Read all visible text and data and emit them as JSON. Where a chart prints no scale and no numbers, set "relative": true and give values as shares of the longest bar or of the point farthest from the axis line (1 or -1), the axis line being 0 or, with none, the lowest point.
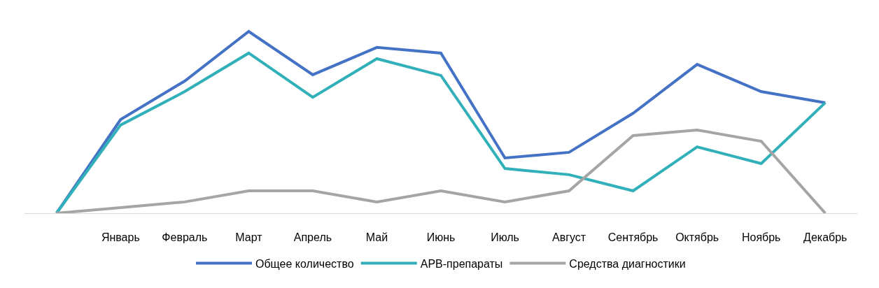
{
  "chart_data": {
    "type": "line",
    "relative": true,
    "grid": false,
    "legend": "bottom",
    "marker": "none",
    "line_style": "solid",
    "categories": [
      null,
      "Январь",
      "Февраль",
      "Март",
      "Апрель",
      "Май",
      "Июнь",
      "Июль",
      "Август",
      "Сентябрь",
      "Октябрь",
      "Ноябрь",
      "Декабрь"
    ],
    "series": [
      {
        "name": "Общее количество",
        "color": "#4472c4",
        "values": [
          0,
          0.515,
          0.727,
          1,
          0.762,
          0.912,
          0.881,
          0.304,
          0.335,
          0.55,
          0.819,
          0.669,
          0.608
        ]
      },
      {
        "name": "АРВ-препараты",
        "color": "#31b0ba",
        "values": [
          0,
          0.485,
          0.669,
          0.881,
          0.638,
          0.85,
          0.758,
          0.246,
          0.212,
          0.123,
          0.365,
          0.273,
          0.608
        ]
      },
      {
        "name": "Средства диагностики",
        "color": "#a5a5a5",
        "values": [
          0,
          0.031,
          0.062,
          0.123,
          0.123,
          0.062,
          0.123,
          0.062,
          0.123,
          0.427,
          0.458,
          0.396,
          0
        ]
      }
    ]
  }
}
